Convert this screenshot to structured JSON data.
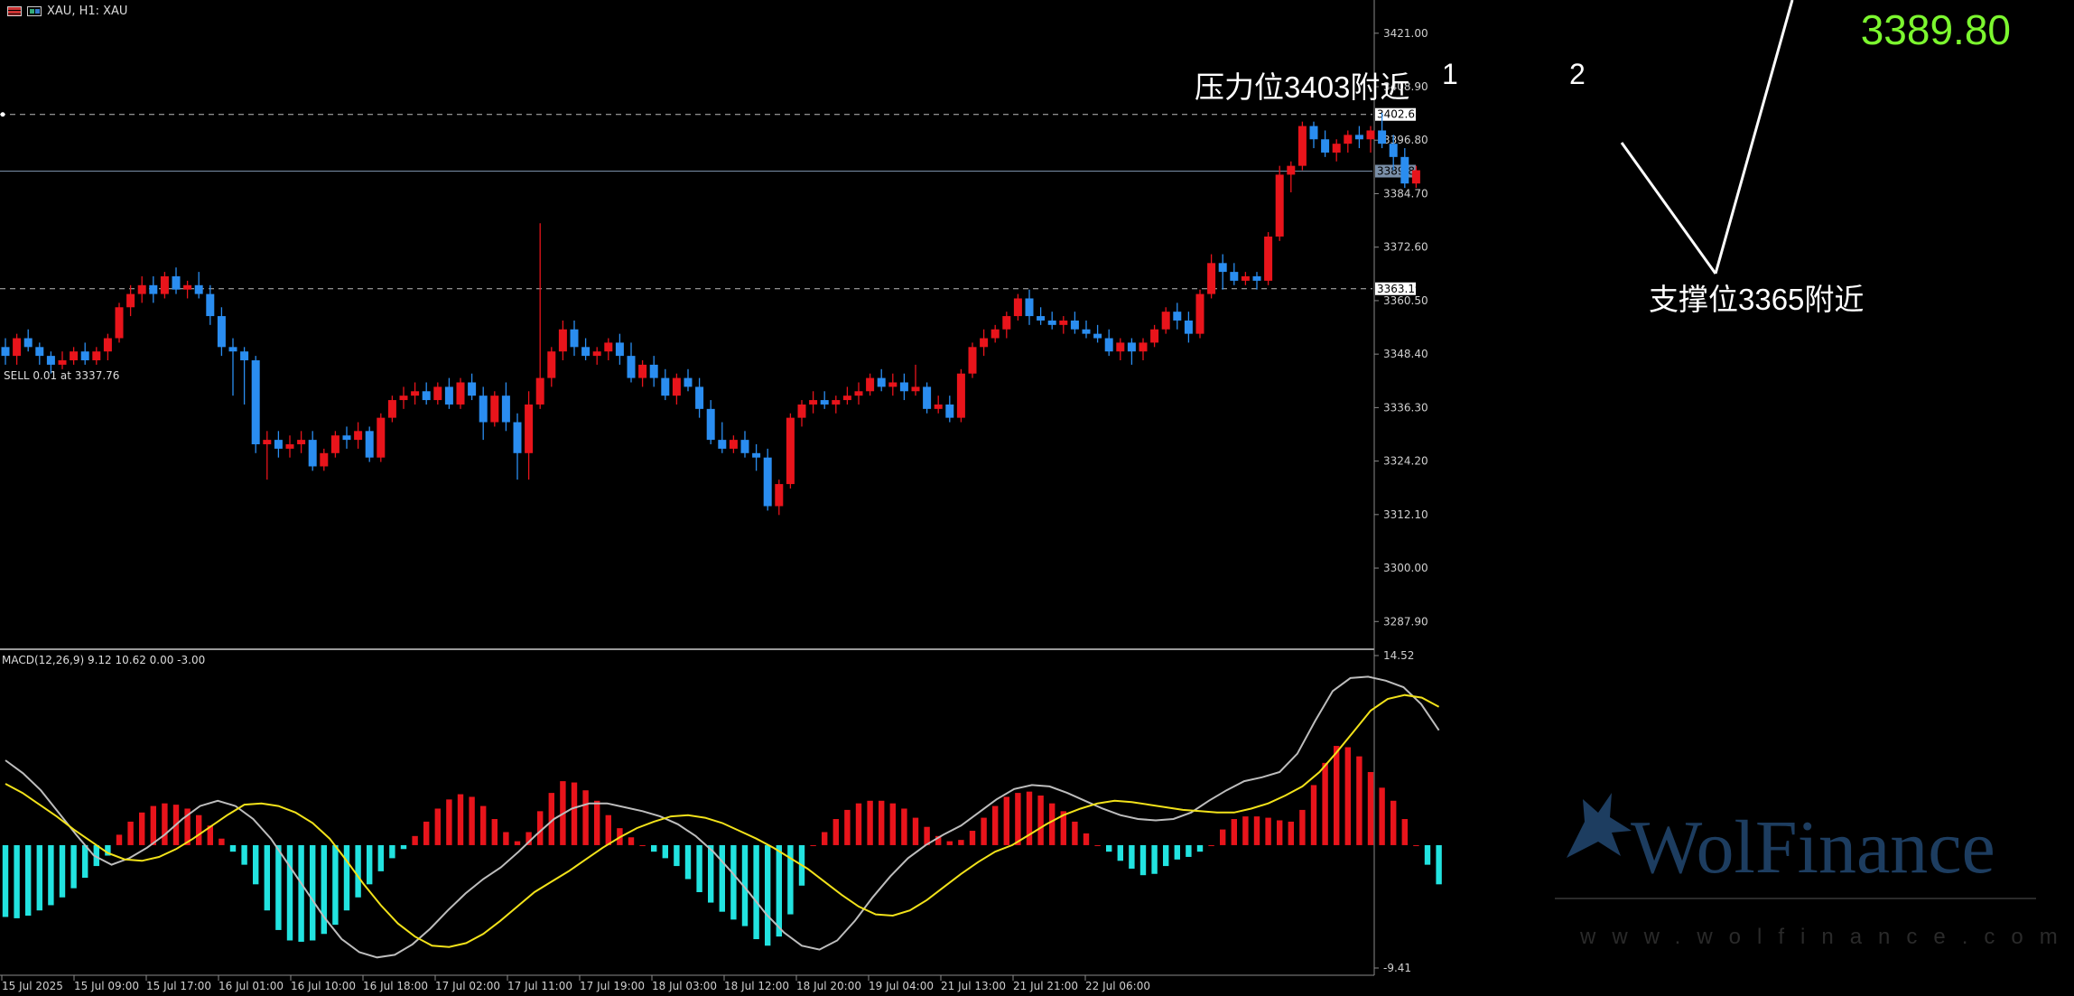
{
  "header": {
    "symbol_label": "XAU, H1:  XAU"
  },
  "current_price_display": "3389.80",
  "order_label": "SELL 0.01 at 3337.76",
  "macd_label": "MACD(12,26,9) 9.12 10.62 0.00 -3.00",
  "annotations": {
    "resistance": "压力位3403附近",
    "support": "支撑位3365附近",
    "peak_1": "1",
    "peak_2": "2"
  },
  "watermark": {
    "brand": "WolFinance",
    "url": "www.wolfinance.com"
  },
  "colors": {
    "up": "#e8141b",
    "down": "#2a8df0",
    "macd_pos": "#e8141b",
    "macd_neg": "#22e3e0",
    "macd_line": "#bdbdbd",
    "signal_line": "#f2e21a",
    "price_big": "#7cf72f"
  },
  "chart_data": [
    {
      "type": "candlestick",
      "title": "XAU, H1:  XAU",
      "ylim": [
        3280.4,
        3427.7
      ],
      "y_ticks": [
        "3421.00",
        "3408.90",
        "3396.80",
        "3384.70",
        "3372.60",
        "3360.50",
        "3348.40",
        "3336.30",
        "3324.20",
        "3312.10",
        "3300.00",
        "3287.90"
      ],
      "x_ticks": [
        "15 Jul 2025",
        "15 Jul 09:00",
        "15 Jul 17:00",
        "16 Jul 01:00",
        "16 Jul 10:00",
        "16 Jul 18:00",
        "17 Jul 02:00",
        "17 Jul 11:00",
        "17 Jul 19:00",
        "18 Jul 03:00",
        "18 Jul 12:00",
        "18 Jul 20:00",
        "19 Jul 04:00",
        "21 Jul 13:00",
        "21 Jul 21:00",
        "22 Jul 06:00"
      ],
      "price_tags": [
        {
          "label": "3402.63",
          "value": 3402.63,
          "style": "dashed"
        },
        {
          "label": "3389.80",
          "value": 3389.8,
          "style": "current"
        },
        {
          "label": "3363.19",
          "value": 3363.19,
          "style": "dashed"
        }
      ],
      "candles": [
        [
          3350,
          3352,
          3346,
          3348
        ],
        [
          3348,
          3353,
          3346,
          3352
        ],
        [
          3352,
          3354,
          3349,
          3350
        ],
        [
          3350,
          3351,
          3346,
          3348
        ],
        [
          3348,
          3349,
          3344,
          3346
        ],
        [
          3346,
          3349,
          3345,
          3347
        ],
        [
          3347,
          3350,
          3346,
          3349
        ],
        [
          3349,
          3351,
          3346,
          3347
        ],
        [
          3347,
          3350,
          3346,
          3349
        ],
        [
          3349,
          3353,
          3347,
          3352
        ],
        [
          3352,
          3360,
          3351,
          3359
        ],
        [
          3359,
          3364,
          3357,
          3362
        ],
        [
          3362,
          3366,
          3360,
          3364
        ],
        [
          3364,
          3366,
          3360,
          3362
        ],
        [
          3362,
          3367,
          3361,
          3366
        ],
        [
          3366,
          3368,
          3362,
          3363
        ],
        [
          3363,
          3365,
          3361,
          3364
        ],
        [
          3364,
          3367,
          3361,
          3362
        ],
        [
          3362,
          3364,
          3355,
          3357
        ],
        [
          3357,
          3359,
          3348,
          3350
        ],
        [
          3350,
          3352,
          3339,
          3349
        ],
        [
          3349,
          3350,
          3337,
          3347
        ],
        [
          3347,
          3348,
          3326,
          3328
        ],
        [
          3328,
          3331,
          3320,
          3329
        ],
        [
          3329,
          3331,
          3325,
          3327
        ],
        [
          3327,
          3330,
          3325,
          3328
        ],
        [
          3328,
          3331,
          3326,
          3329
        ],
        [
          3329,
          3331,
          3322,
          3323
        ],
        [
          3323,
          3327,
          3322,
          3326
        ],
        [
          3326,
          3331,
          3325,
          3330
        ],
        [
          3330,
          3332,
          3327,
          3329
        ],
        [
          3329,
          3333,
          3327,
          3331
        ],
        [
          3331,
          3332,
          3324,
          3325
        ],
        [
          3325,
          3335,
          3324,
          3334
        ],
        [
          3334,
          3339,
          3333,
          3338
        ],
        [
          3338,
          3341,
          3336,
          3339
        ],
        [
          3339,
          3342,
          3337,
          3340
        ],
        [
          3340,
          3342,
          3337,
          3338
        ],
        [
          3338,
          3342,
          3337,
          3341
        ],
        [
          3341,
          3343,
          3336,
          3337
        ],
        [
          3337,
          3343,
          3336,
          3342
        ],
        [
          3342,
          3344,
          3338,
          3339
        ],
        [
          3339,
          3341,
          3329,
          3333
        ],
        [
          3333,
          3340,
          3332,
          3339
        ],
        [
          3339,
          3342,
          3331,
          3333
        ],
        [
          3333,
          3335,
          3320,
          3326
        ],
        [
          3326,
          3340,
          3320,
          3337
        ],
        [
          3337,
          3378,
          3336,
          3343
        ],
        [
          3343,
          3350,
          3341,
          3349
        ],
        [
          3349,
          3356,
          3347,
          3354
        ],
        [
          3354,
          3356,
          3348,
          3350
        ],
        [
          3350,
          3352,
          3347,
          3348
        ],
        [
          3348,
          3350,
          3346,
          3349
        ],
        [
          3349,
          3352,
          3347,
          3351
        ],
        [
          3351,
          3353,
          3346,
          3348
        ],
        [
          3348,
          3351,
          3342,
          3343
        ],
        [
          3343,
          3347,
          3341,
          3346
        ],
        [
          3346,
          3348,
          3341,
          3343
        ],
        [
          3343,
          3345,
          3338,
          3339
        ],
        [
          3339,
          3344,
          3337,
          3343
        ],
        [
          3343,
          3345,
          3340,
          3341
        ],
        [
          3341,
          3343,
          3334,
          3336
        ],
        [
          3336,
          3338,
          3328,
          3329
        ],
        [
          3329,
          3333,
          3326,
          3327
        ],
        [
          3327,
          3330,
          3326,
          3329
        ],
        [
          3329,
          3331,
          3325,
          3326
        ],
        [
          3326,
          3328,
          3322,
          3325
        ],
        [
          3325,
          3327,
          3313,
          3314
        ],
        [
          3314,
          3320,
          3312,
          3319
        ],
        [
          3319,
          3335,
          3318,
          3334
        ],
        [
          3334,
          3338,
          3332,
          3337
        ],
        [
          3337,
          3340,
          3335,
          3338
        ],
        [
          3338,
          3340,
          3336,
          3337
        ],
        [
          3337,
          3339,
          3335,
          3338
        ],
        [
          3338,
          3341,
          3337,
          3339
        ],
        [
          3339,
          3342,
          3337,
          3340
        ],
        [
          3340,
          3344,
          3339,
          3343
        ],
        [
          3343,
          3345,
          3340,
          3341
        ],
        [
          3341,
          3344,
          3339,
          3342
        ],
        [
          3342,
          3344,
          3338,
          3340
        ],
        [
          3340,
          3346,
          3339,
          3341
        ],
        [
          3341,
          3342,
          3335,
          3336
        ],
        [
          3336,
          3339,
          3335,
          3337
        ],
        [
          3337,
          3339,
          3333,
          3334
        ],
        [
          3334,
          3345,
          3333,
          3344
        ],
        [
          3344,
          3351,
          3343,
          3350
        ],
        [
          3350,
          3354,
          3348,
          3352
        ],
        [
          3352,
          3355,
          3351,
          3354
        ],
        [
          3354,
          3358,
          3352,
          3357
        ],
        [
          3357,
          3362,
          3356,
          3361
        ],
        [
          3361,
          3363,
          3355,
          3357
        ],
        [
          3357,
          3359,
          3355,
          3356
        ],
        [
          3356,
          3358,
          3354,
          3355
        ],
        [
          3355,
          3357,
          3353,
          3356
        ],
        [
          3356,
          3358,
          3353,
          3354
        ],
        [
          3354,
          3356,
          3352,
          3353
        ],
        [
          3353,
          3355,
          3351,
          3352
        ],
        [
          3352,
          3354,
          3348,
          3349
        ],
        [
          3349,
          3352,
          3347,
          3351
        ],
        [
          3351,
          3352,
          3346,
          3349
        ],
        [
          3349,
          3352,
          3347,
          3351
        ],
        [
          3351,
          3355,
          3350,
          3354
        ],
        [
          3354,
          3359,
          3353,
          3358
        ],
        [
          3358,
          3360,
          3354,
          3356
        ],
        [
          3356,
          3358,
          3351,
          3353
        ],
        [
          3353,
          3363,
          3352,
          3362
        ],
        [
          3362,
          3371,
          3361,
          3369
        ],
        [
          3369,
          3371,
          3363,
          3367
        ],
        [
          3367,
          3369,
          3364,
          3365
        ],
        [
          3365,
          3367,
          3364,
          3366
        ],
        [
          3366,
          3367,
          3363,
          3365
        ],
        [
          3365,
          3376,
          3364,
          3375
        ],
        [
          3375,
          3391,
          3374,
          3389
        ],
        [
          3389,
          3392,
          3385,
          3391
        ],
        [
          3391,
          3401,
          3390,
          3400
        ],
        [
          3400,
          3401,
          3395,
          3397
        ],
        [
          3397,
          3399,
          3393,
          3394
        ],
        [
          3394,
          3397,
          3392,
          3396
        ],
        [
          3396,
          3399,
          3394,
          3398
        ],
        [
          3398,
          3400,
          3395,
          3397
        ],
        [
          3397,
          3400,
          3394,
          3399
        ],
        [
          3399,
          3403,
          3395,
          3396
        ],
        [
          3396,
          3398,
          3390,
          3393
        ],
        [
          3393,
          3395,
          3386,
          3387
        ],
        [
          3387,
          3391,
          3386,
          3390
        ]
      ]
    },
    {
      "type": "bar+line",
      "title": "MACD(12,26,9) 9.12 10.62 0.00 -3.00",
      "ylim": [
        -9.41,
        14.52
      ],
      "y_ticks": [
        "14.52",
        "-9.41"
      ],
      "series": [
        {
          "name": "MACD",
          "kind": "histogram",
          "values": [
            -5.5,
            -5.6,
            -5.4,
            -5.0,
            -4.6,
            -4.0,
            -3.3,
            -2.5,
            -1.6,
            -0.8,
            0.8,
            1.8,
            2.5,
            3.0,
            3.2,
            3.1,
            2.8,
            2.3,
            1.5,
            0.5,
            -0.5,
            -1.5,
            -3.0,
            -5.0,
            -6.5,
            -7.3,
            -7.4,
            -7.3,
            -6.8,
            -6.1,
            -5.0,
            -4.0,
            -3.0,
            -2.0,
            -1.0,
            -0.3,
            0.7,
            1.8,
            2.8,
            3.5,
            3.9,
            3.7,
            3.0,
            2.0,
            1.0,
            0.3,
            1.0,
            2.6,
            4.0,
            4.9,
            4.8,
            4.2,
            3.4,
            2.3,
            1.3,
            0.6,
            0.0,
            -0.5,
            -1.0,
            -1.6,
            -2.6,
            -3.6,
            -4.4,
            -5.1,
            -5.7,
            -6.2,
            -7.2,
            -7.7,
            -7.0,
            -5.3,
            -3.1,
            0.0,
            1.0,
            2.0,
            2.7,
            3.2,
            3.4,
            3.4,
            3.2,
            2.8,
            2.1,
            1.4,
            0.7,
            0.3,
            0.4,
            1.1,
            2.1,
            3.0,
            3.7,
            4.0,
            4.1,
            3.8,
            3.2,
            2.6,
            1.8,
            0.9,
            0.0,
            -0.5,
            -1.2,
            -1.8,
            -2.3,
            -2.2,
            -1.6,
            -1.1,
            -0.9,
            -0.5,
            0.0,
            1.2,
            2.0,
            2.2,
            2.2,
            2.1,
            1.9,
            1.8,
            2.7,
            4.6,
            6.3,
            7.6,
            7.5,
            6.8,
            5.6,
            4.4,
            3.4,
            2.0,
            0.0,
            -1.5,
            -3.0
          ]
        },
        {
          "name": "Signal",
          "kind": "line",
          "values": [
            4.7,
            4.0,
            3.1,
            2.2,
            1.2,
            0.3,
            -0.6,
            -1.1,
            -1.2,
            -0.9,
            -0.3,
            0.5,
            1.4,
            2.3,
            3.1,
            3.2,
            3.0,
            2.5,
            1.7,
            0.5,
            -1.2,
            -3.0,
            -4.6,
            -6.0,
            -7.0,
            -7.7,
            -7.8,
            -7.5,
            -6.8,
            -5.8,
            -4.7,
            -3.6,
            -2.8,
            -2.0,
            -1.1,
            -0.2,
            0.6,
            1.3,
            1.8,
            2.2,
            2.3,
            2.1,
            1.7,
            1.1,
            0.5,
            -0.2,
            -1.0,
            -1.8,
            -2.8,
            -3.8,
            -4.7,
            -5.3,
            -5.4,
            -5.0,
            -4.2,
            -3.2,
            -2.2,
            -1.3,
            -0.5,
            0.0,
            0.8,
            1.6,
            2.3,
            2.8,
            3.2,
            3.4,
            3.3,
            3.1,
            2.9,
            2.7,
            2.6,
            2.5,
            2.5,
            2.8,
            3.2,
            3.8,
            4.5,
            5.6,
            7.1,
            8.7,
            10.3,
            11.2,
            11.5,
            11.3,
            10.6
          ]
        },
        {
          "name": "Main",
          "kind": "line",
          "values": [
            6.5,
            5.5,
            4.2,
            2.5,
            0.8,
            -0.8,
            -1.5,
            -1.0,
            -0.2,
            0.8,
            2.0,
            3.0,
            3.4,
            3.0,
            2.0,
            0.5,
            -1.5,
            -3.5,
            -5.5,
            -7.2,
            -8.2,
            -8.6,
            -8.4,
            -7.6,
            -6.4,
            -5.0,
            -3.7,
            -2.6,
            -1.7,
            -0.5,
            0.8,
            2.0,
            2.8,
            3.2,
            3.2,
            2.9,
            2.6,
            2.2,
            1.6,
            0.7,
            -0.5,
            -2.0,
            -3.6,
            -5.3,
            -6.7,
            -7.7,
            -8.0,
            -7.3,
            -5.8,
            -4.0,
            -2.4,
            -1.0,
            0.0,
            0.8,
            1.5,
            2.5,
            3.5,
            4.3,
            4.6,
            4.5,
            4.0,
            3.4,
            2.8,
            2.3,
            2.0,
            1.9,
            2.0,
            2.5,
            3.4,
            4.2,
            4.9,
            5.2,
            5.6,
            7.0,
            9.5,
            11.8,
            12.8,
            12.9,
            12.6,
            12.1,
            10.8,
            8.8
          ]
        }
      ]
    }
  ]
}
